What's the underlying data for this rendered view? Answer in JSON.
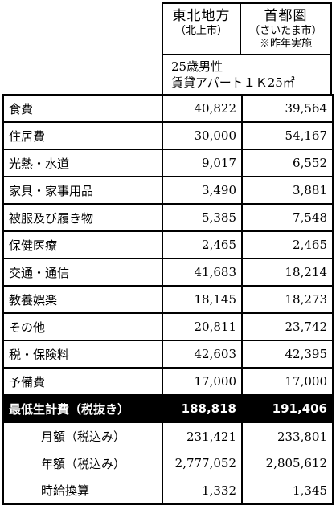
{
  "columns": [
    {
      "name": "東北地方",
      "sub": "（北上市）",
      "note": ""
    },
    {
      "name": "首都圏",
      "sub": "（さいたま市）",
      "note": "※昨年実施"
    }
  ],
  "conditions": {
    "line1": "25歳男性",
    "line2": "賃貸アパート１Ｋ25㎡"
  },
  "rows": [
    {
      "label": "食費",
      "v1": "40,822",
      "v2": "39,564"
    },
    {
      "label": "住居費",
      "v1": "30,000",
      "v2": "54,167"
    },
    {
      "label": "光熱・水道",
      "v1": "9,017",
      "v2": "6,552"
    },
    {
      "label": "家具・家事用品",
      "v1": "3,490",
      "v2": "3,881"
    },
    {
      "label": "被服及び履き物",
      "v1": "5,385",
      "v2": "7,548"
    },
    {
      "label": "保健医療",
      "v1": "2,465",
      "v2": "2,465"
    },
    {
      "label": "交通・通信",
      "v1": "41,683",
      "v2": "18,214"
    },
    {
      "label": "教養娯楽",
      "v1": "18,145",
      "v2": "18,273"
    },
    {
      "label": "その他",
      "v1": "20,811",
      "v2": "23,742"
    },
    {
      "label": "税・保険料",
      "v1": "42,603",
      "v2": "42,395"
    },
    {
      "label": "予備費",
      "v1": "17,000",
      "v2": "17,000"
    }
  ],
  "total": {
    "label": "最低生計費（税抜き）",
    "v1": "188,818",
    "v2": "191,406"
  },
  "extras": [
    {
      "label": "月額（税込み）",
      "v1": "231,421",
      "v2": "233,801"
    },
    {
      "label": "年額（税込み）",
      "v1": "2,777,052",
      "v2": "2,805,612"
    },
    {
      "label": "時給換算",
      "v1": "1,332",
      "v2": "1,345"
    }
  ]
}
